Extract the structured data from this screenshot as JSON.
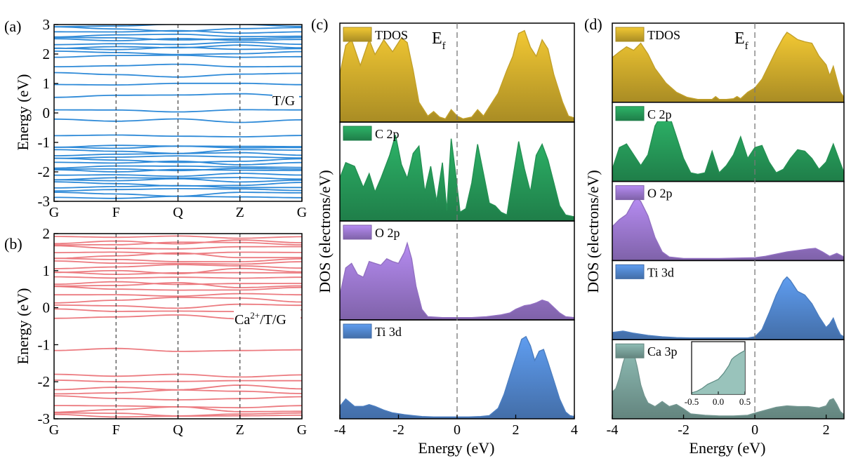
{
  "chart_data": [
    {
      "panel_label": "(a)",
      "type": "line",
      "ylabel": "Energy (eV)",
      "annotation": "T/G",
      "kpoints": [
        "G",
        "F",
        "Q",
        "Z",
        "G"
      ],
      "ylim": [
        -3,
        3
      ],
      "yticks": [
        -3,
        -2,
        -1,
        0,
        1,
        2,
        3
      ],
      "color": "#2e8ad8",
      "band_energies_at_F": [
        -2.9,
        -2.75,
        -2.6,
        -2.5,
        -2.4,
        -2.3,
        -2.2,
        -2.1,
        -2.0,
        -1.9,
        -1.8,
        -1.7,
        -1.6,
        -1.5,
        -1.4,
        -1.3,
        -1.2,
        -1.1,
        -0.75,
        -0.28,
        0.1,
        0.6,
        0.95,
        1.3,
        1.6,
        1.95,
        2.05,
        2.15,
        2.25,
        2.35,
        2.45,
        2.55,
        2.65,
        2.75,
        2.85,
        2.95
      ]
    },
    {
      "panel_label": "(b)",
      "type": "line",
      "ylabel": "Energy (eV)",
      "annotation_main": "Ca",
      "annotation_sup": "2+",
      "annotation_tail": "/T/G",
      "kpoints": [
        "G",
        "F",
        "Q",
        "Z",
        "G"
      ],
      "ylim": [
        -3,
        2
      ],
      "yticks": [
        -3,
        -2,
        -1,
        0,
        1,
        2
      ],
      "color": "#ec7b80",
      "band_energies_at_F": [
        -2.95,
        -2.85,
        -2.75,
        -2.65,
        -2.45,
        -2.3,
        -2.15,
        -2.0,
        -1.85,
        -1.1,
        -0.25,
        -0.1,
        0.05,
        0.2,
        0.35,
        0.5,
        0.6,
        0.7,
        0.8,
        0.9,
        1.0,
        1.1,
        1.2,
        1.3,
        1.4,
        1.5,
        1.6,
        1.7,
        1.8,
        1.9
      ]
    },
    {
      "panel_label": "(c)",
      "type": "area",
      "ylabel": "DOS (electrons/eV)",
      "xlabel": "Energy (eV)",
      "fermi_label_main": "E",
      "fermi_label_sub": "f",
      "xlim": [
        -4,
        4
      ],
      "xticks": [
        -4,
        -2,
        0,
        2,
        4
      ],
      "series": [
        {
          "name": "TDOS",
          "color": "#f2c833",
          "x": [
            -4,
            -3.8,
            -3.6,
            -3.3,
            -3.0,
            -2.8,
            -2.5,
            -2.2,
            -1.9,
            -1.7,
            -1.5,
            -1.3,
            -1.0,
            -0.8,
            -0.6,
            -0.4,
            -0.2,
            0.0,
            0.2,
            0.5,
            0.7,
            0.9,
            1.1,
            1.4,
            1.7,
            1.9,
            2.1,
            2.3,
            2.5,
            2.7,
            2.9,
            3.1,
            3.3,
            3.6,
            3.8,
            4.0
          ],
          "y": [
            0.5,
            0.82,
            0.88,
            0.6,
            0.88,
            0.72,
            0.88,
            0.75,
            0.9,
            0.85,
            0.55,
            0.2,
            0.05,
            0.1,
            0.04,
            0.02,
            0.12,
            0.05,
            0.02,
            0.04,
            0.12,
            0.05,
            0.15,
            0.3,
            0.55,
            0.7,
            0.95,
            0.98,
            0.8,
            0.7,
            0.88,
            0.78,
            0.5,
            0.2,
            0.05,
            0.03
          ]
        },
        {
          "name": "C 2p",
          "color": "#2db468",
          "x": [
            -4,
            -3.8,
            -3.5,
            -3.2,
            -3.0,
            -2.8,
            -2.6,
            -2.3,
            -2.1,
            -1.9,
            -1.7,
            -1.5,
            -1.3,
            -1.1,
            -0.9,
            -0.7,
            -0.5,
            -0.35,
            -0.2,
            -0.05,
            0.1,
            0.3,
            0.5,
            0.7,
            0.9,
            1.1,
            1.3,
            1.5,
            1.7,
            1.9,
            2.1,
            2.3,
            2.5,
            2.7,
            2.9,
            3.1,
            3.3,
            3.5,
            3.7,
            4.0
          ],
          "y": [
            0.45,
            0.62,
            0.58,
            0.35,
            0.5,
            0.3,
            0.45,
            0.7,
            0.92,
            0.6,
            0.45,
            0.72,
            0.8,
            0.3,
            0.58,
            0.2,
            0.62,
            0.1,
            0.88,
            0.5,
            0.08,
            0.12,
            0.4,
            0.82,
            0.5,
            0.18,
            0.15,
            0.08,
            0.05,
            0.45,
            0.85,
            0.55,
            0.3,
            0.7,
            0.82,
            0.65,
            0.4,
            0.15,
            0.05,
            0.03
          ]
        },
        {
          "name": "O 2p",
          "color": "#b68cf2",
          "x": [
            -4,
            -3.8,
            -3.6,
            -3.4,
            -3.2,
            -3.0,
            -2.8,
            -2.6,
            -2.4,
            -2.2,
            -2.0,
            -1.8,
            -1.7,
            -1.55,
            -1.4,
            -1.2,
            -1.0,
            -0.5,
            0.0,
            0.5,
            1.0,
            1.5,
            1.8,
            2.0,
            2.3,
            2.5,
            2.7,
            2.9,
            3.1,
            3.3,
            3.5,
            3.7,
            4.0
          ],
          "y": [
            0.25,
            0.55,
            0.6,
            0.48,
            0.45,
            0.62,
            0.6,
            0.58,
            0.65,
            0.62,
            0.6,
            0.72,
            0.82,
            0.65,
            0.35,
            0.1,
            0.02,
            0.01,
            0.01,
            0.01,
            0.02,
            0.04,
            0.06,
            0.1,
            0.14,
            0.15,
            0.17,
            0.2,
            0.18,
            0.12,
            0.06,
            0.02,
            0.01
          ]
        },
        {
          "name": "Ti 3d",
          "color": "#5f9df0",
          "x": [
            -4,
            -3.8,
            -3.5,
            -3.2,
            -3.0,
            -2.8,
            -2.5,
            -2.2,
            -1.8,
            -1.5,
            -1.2,
            -0.8,
            -0.4,
            0.0,
            0.4,
            0.8,
            1.1,
            1.4,
            1.6,
            1.8,
            2.0,
            2.2,
            2.35,
            2.5,
            2.65,
            2.8,
            2.95,
            3.1,
            3.3,
            3.5,
            3.7,
            3.85,
            4.0
          ],
          "y": [
            0.12,
            0.2,
            0.12,
            0.12,
            0.14,
            0.12,
            0.08,
            0.05,
            0.03,
            0.02,
            0.01,
            0.005,
            0.005,
            0.005,
            0.005,
            0.01,
            0.02,
            0.1,
            0.25,
            0.45,
            0.65,
            0.85,
            0.88,
            0.78,
            0.62,
            0.72,
            0.74,
            0.6,
            0.4,
            0.2,
            0.06,
            0.02,
            0.01
          ]
        }
      ]
    },
    {
      "panel_label": "(d)",
      "type": "area",
      "ylabel": "DOS (electrons/eV)",
      "xlabel": "Energy (eV)",
      "fermi_label_main": "E",
      "fermi_label_sub": "f",
      "xlim": [
        -4,
        2.5
      ],
      "xticks": [
        -4,
        -2,
        0,
        2
      ],
      "series": [
        {
          "name": "TDOS",
          "color": "#f2c833",
          "x": [
            -4.0,
            -3.8,
            -3.6,
            -3.4,
            -3.2,
            -3.0,
            -2.8,
            -2.5,
            -2.2,
            -1.9,
            -1.6,
            -1.4,
            -1.2,
            -1.1,
            -1.0,
            -0.8,
            -0.6,
            -0.5,
            -0.4,
            -0.2,
            0.0,
            0.2,
            0.4,
            0.6,
            0.8,
            0.9,
            1.0,
            1.2,
            1.4,
            1.6,
            1.8,
            2.0,
            2.1,
            2.2,
            2.3,
            2.4,
            2.5
          ],
          "y": [
            0.6,
            0.68,
            0.75,
            0.7,
            0.8,
            0.65,
            0.45,
            0.25,
            0.12,
            0.05,
            0.02,
            0.02,
            0.02,
            0.06,
            0.02,
            0.02,
            0.03,
            0.06,
            0.03,
            0.12,
            0.18,
            0.3,
            0.5,
            0.7,
            0.88,
            0.95,
            0.92,
            0.85,
            0.82,
            0.8,
            0.62,
            0.5,
            0.35,
            0.48,
            0.3,
            0.12,
            0.05
          ]
        },
        {
          "name": "C 2p",
          "color": "#2db468",
          "x": [
            -4.0,
            -3.8,
            -3.6,
            -3.4,
            -3.2,
            -3.0,
            -2.8,
            -2.6,
            -2.4,
            -2.2,
            -2.0,
            -1.8,
            -1.6,
            -1.4,
            -1.2,
            -1.0,
            -0.8,
            -0.6,
            -0.4,
            -0.2,
            0.0,
            0.2,
            0.4,
            0.6,
            0.8,
            1.0,
            1.2,
            1.4,
            1.6,
            1.8,
            2.0,
            2.2,
            2.35,
            2.5
          ],
          "y": [
            0.15,
            0.45,
            0.5,
            0.35,
            0.2,
            0.35,
            0.75,
            0.92,
            0.9,
            0.6,
            0.3,
            0.1,
            0.08,
            0.1,
            0.4,
            0.1,
            0.2,
            0.35,
            0.6,
            0.3,
            0.45,
            0.48,
            0.25,
            0.1,
            0.15,
            0.3,
            0.42,
            0.4,
            0.3,
            0.15,
            0.25,
            0.5,
            0.3,
            0.1
          ]
        },
        {
          "name": "O 2p",
          "color": "#b68cf2",
          "x": [
            -4.0,
            -3.8,
            -3.6,
            -3.4,
            -3.3,
            -3.2,
            -3.0,
            -2.8,
            -2.6,
            -2.4,
            -2.0,
            -1.0,
            0.0,
            0.3,
            0.6,
            0.9,
            1.2,
            1.5,
            1.7,
            1.9,
            2.1,
            2.3,
            2.5
          ],
          "y": [
            0.45,
            0.55,
            0.62,
            0.8,
            0.85,
            0.8,
            0.6,
            0.3,
            0.1,
            0.03,
            0.01,
            0.01,
            0.02,
            0.04,
            0.07,
            0.1,
            0.12,
            0.14,
            0.15,
            0.1,
            0.04,
            0.08,
            0.03
          ]
        },
        {
          "name": "Ti 3d",
          "color": "#5f9df0",
          "x": [
            -4.0,
            -3.7,
            -3.4,
            -3.0,
            -2.6,
            -2.2,
            -1.8,
            -1.4,
            -1.0,
            -0.6,
            -0.2,
            0.0,
            0.2,
            0.4,
            0.6,
            0.8,
            0.9,
            1.0,
            1.2,
            1.4,
            1.6,
            1.8,
            2.0,
            2.1,
            2.2,
            2.3,
            2.4,
            2.5
          ],
          "y": [
            0.08,
            0.1,
            0.07,
            0.04,
            0.02,
            0.01,
            0.005,
            0.005,
            0.005,
            0.005,
            0.005,
            0.02,
            0.12,
            0.35,
            0.6,
            0.8,
            0.85,
            0.8,
            0.65,
            0.6,
            0.48,
            0.3,
            0.15,
            0.2,
            0.28,
            0.15,
            0.05,
            0.02
          ]
        },
        {
          "name": "Ca 3p",
          "color": "#8ebcb4",
          "x": [
            -4.0,
            -3.9,
            -3.8,
            -3.7,
            -3.6,
            -3.5,
            -3.4,
            -3.3,
            -3.2,
            -3.1,
            -3.0,
            -2.8,
            -2.6,
            -2.4,
            -2.2,
            -2.0,
            -1.8,
            -1.6,
            -1.4,
            -1.0,
            -0.6,
            -0.2,
            0.0,
            0.3,
            0.6,
            0.9,
            1.2,
            1.5,
            1.8,
            2.0,
            2.1,
            2.2,
            2.3,
            2.4,
            2.5
          ],
          "y": [
            0.35,
            0.4,
            0.55,
            0.75,
            0.9,
            0.95,
            0.9,
            0.7,
            0.45,
            0.3,
            0.2,
            0.15,
            0.22,
            0.15,
            0.18,
            0.12,
            0.05,
            0.04,
            0.03,
            0.02,
            0.02,
            0.03,
            0.06,
            0.1,
            0.14,
            0.16,
            0.15,
            0.15,
            0.13,
            0.16,
            0.24,
            0.26,
            0.18,
            0.08,
            0.04
          ]
        }
      ],
      "inset": {
        "series": "Ca 3p",
        "xlim": [
          -0.5,
          0.5
        ],
        "xtick_labels": [
          "-0.5",
          "0.0",
          "0.5"
        ],
        "x": [
          -0.5,
          -0.4,
          -0.3,
          -0.2,
          -0.1,
          0.0,
          0.1,
          0.2,
          0.25,
          0.3,
          0.4,
          0.5
        ],
        "y": [
          0.03,
          0.06,
          0.12,
          0.2,
          0.25,
          0.3,
          0.42,
          0.58,
          0.7,
          0.75,
          0.82,
          0.88
        ]
      }
    }
  ]
}
